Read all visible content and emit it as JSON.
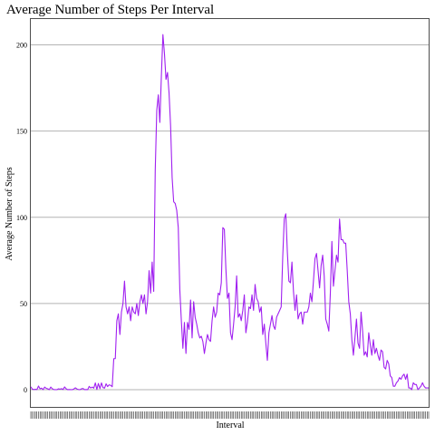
{
  "chart_data": {
    "type": "line",
    "title": "Average Number of Steps Per Interval",
    "xlabel": "Interval",
    "ylabel": "Average Number of Steps",
    "ylim": [
      -10,
      215
    ],
    "yticks": [
      0,
      50,
      100,
      150,
      200
    ],
    "grid": true,
    "line_color": "#a020f0",
    "grid_color": "#b3b3b3",
    "x_tick_labels_illegible": true,
    "series": [
      {
        "values": [
          1.7,
          0.3,
          0.1,
          0.2,
          0.1,
          2.1,
          0.5,
          0.9,
          0,
          1.5,
          0.8,
          0.5,
          0,
          1.5,
          0.5,
          0.1,
          0,
          0,
          0.5,
          0.3,
          0.6,
          0.1,
          1.6,
          0.5,
          0,
          0.1,
          0,
          0,
          0.4,
          1.1,
          0.4,
          0.1,
          0,
          0.5,
          0.7,
          0,
          0.1,
          0,
          1.9,
          1,
          1.5,
          0.9,
          3.9,
          0.1,
          3.6,
          0.6,
          3.9,
          1.2,
          0.9,
          3.4,
          1.8,
          2.8,
          2.5,
          1.7,
          18,
          18,
          40,
          44,
          32,
          45,
          50,
          63,
          48,
          44,
          48,
          40,
          48,
          45,
          44,
          50,
          43,
          51,
          55,
          50,
          55,
          44,
          51,
          69,
          56,
          74,
          57,
          127,
          162,
          171,
          155,
          182,
          206,
          195,
          180,
          184,
          172,
          153,
          123,
          109,
          108,
          104,
          94,
          58,
          40,
          24,
          39,
          21,
          39,
          35,
          52,
          30,
          51,
          42,
          38,
          33,
          30,
          31,
          28,
          21,
          27,
          32,
          29,
          28,
          40,
          48,
          42,
          45,
          56,
          55,
          62,
          94,
          93,
          70,
          53,
          56,
          33,
          29,
          38,
          48,
          66,
          42,
          44,
          40,
          46,
          55,
          33,
          39,
          48,
          47,
          55,
          46,
          61,
          53,
          51,
          45,
          48,
          32,
          38,
          27,
          17,
          33,
          38,
          43,
          37,
          35,
          42,
          44,
          46,
          48,
          77,
          99,
          102,
          80,
          63,
          62,
          74,
          57,
          46,
          55,
          41,
          44,
          45,
          38,
          45,
          45,
          45,
          48,
          56,
          51,
          63,
          76,
          79,
          69,
          59,
          72,
          78,
          66,
          41,
          38,
          34,
          56,
          86,
          60,
          69,
          78,
          74,
          99,
          87,
          87,
          85,
          85,
          69,
          51,
          44,
          29,
          20,
          30,
          41,
          27,
          24,
          45,
          34,
          20,
          22,
          19,
          33,
          26,
          20,
          29,
          21,
          24,
          20,
          17,
          23,
          22,
          13,
          12,
          17,
          15,
          8,
          7,
          2,
          2,
          4,
          5,
          7,
          6,
          8,
          9,
          6,
          9,
          1,
          1,
          0,
          4,
          3,
          3,
          0,
          1,
          2,
          4,
          2,
          1,
          1,
          1
        ]
      }
    ]
  }
}
